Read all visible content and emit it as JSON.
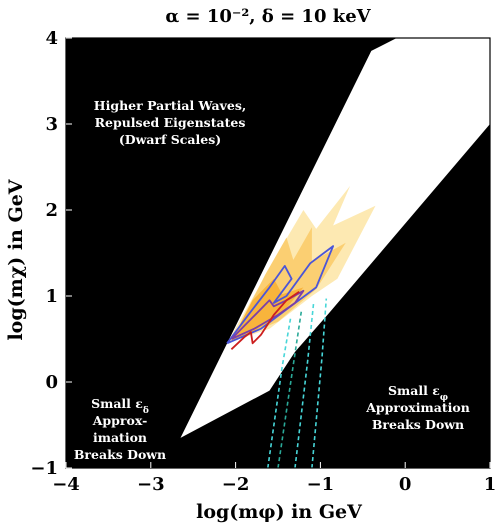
{
  "chart_data": {
    "type": "area",
    "title": "α = 10⁻², δ = 10 keV",
    "xlabel": "log(mφ) in GeV",
    "ylabel": "log(mχ) in GeV",
    "xlim": [
      -4,
      1
    ],
    "ylim": [
      -1,
      4
    ],
    "x_ticks": [
      "−4",
      "−3",
      "−2",
      "−1",
      "0",
      "1"
    ],
    "y_ticks": [
      "−1",
      "0",
      "1",
      "2",
      "3",
      "4"
    ],
    "colors": {
      "excluded_region": "#000000",
      "valid_region": "#ffffff",
      "band_light": "#fde9b2",
      "band_medium": "#fbcf72",
      "band_dark": "#f8b43c",
      "contour_blue": "#4b55d8",
      "contour_purple": "#7b3fa8",
      "contour_red": "#cc1f1f",
      "dashed_cyan": "#47d6d8",
      "dashed_teal": "#2aa998"
    },
    "regions": {
      "valid_region": [
        [
          -2.65,
          -0.65
        ],
        [
          -0.4,
          3.85
        ],
        [
          -0.1,
          4.0
        ],
        [
          1.0,
          4.0
        ],
        [
          1.0,
          3.0
        ],
        [
          -0.9,
          0.8
        ],
        [
          -1.3,
          0.35
        ],
        [
          -1.6,
          -0.1
        ]
      ],
      "band_light": [
        [
          -2.1,
          0.45
        ],
        [
          -1.5,
          1.5
        ],
        [
          -1.2,
          2.0
        ],
        [
          -1.05,
          1.78
        ],
        [
          -0.65,
          2.28
        ],
        [
          -0.85,
          1.82
        ],
        [
          -0.35,
          2.05
        ],
        [
          -0.8,
          1.2
        ],
        [
          -1.1,
          1.0
        ],
        [
          -1.6,
          0.62
        ]
      ],
      "band_medium": [
        [
          -2.05,
          0.48
        ],
        [
          -1.65,
          1.25
        ],
        [
          -1.4,
          1.68
        ],
        [
          -1.32,
          1.42
        ],
        [
          -1.1,
          1.8
        ],
        [
          -1.1,
          1.4
        ],
        [
          -0.7,
          1.62
        ],
        [
          -1.05,
          1.08
        ],
        [
          -1.5,
          0.7
        ]
      ],
      "band_dark": [
        [
          -2.05,
          0.48
        ],
        [
          -1.8,
          0.95
        ],
        [
          -1.55,
          1.2
        ],
        [
          -1.45,
          1.02
        ],
        [
          -1.2,
          1.1
        ],
        [
          -1.45,
          0.8
        ],
        [
          -1.8,
          0.58
        ]
      ]
    },
    "contours": {
      "blue": [
        [
          -2.1,
          0.45
        ],
        [
          -1.85,
          0.78
        ],
        [
          -1.6,
          1.1
        ],
        [
          -1.42,
          1.35
        ],
        [
          -1.34,
          1.2
        ],
        [
          -1.55,
          0.92
        ],
        [
          -1.4,
          1.0
        ],
        [
          -1.12,
          1.38
        ],
        [
          -0.85,
          1.58
        ],
        [
          -1.05,
          1.1
        ],
        [
          -1.35,
          0.88
        ],
        [
          -1.7,
          0.62
        ],
        [
          -2.1,
          0.45
        ]
      ],
      "purple": [
        [
          -2.05,
          0.5
        ],
        [
          -1.75,
          0.8
        ],
        [
          -1.6,
          0.95
        ],
        [
          -1.55,
          0.88
        ],
        [
          -1.4,
          0.95
        ],
        [
          -1.2,
          1.06
        ],
        [
          -1.3,
          0.92
        ],
        [
          -1.5,
          0.78
        ],
        [
          -1.78,
          0.62
        ],
        [
          -2.05,
          0.5
        ]
      ],
      "red": [
        [
          -2.05,
          0.38
        ],
        [
          -1.9,
          0.52
        ],
        [
          -1.82,
          0.58
        ],
        [
          -1.8,
          0.45
        ],
        [
          -1.7,
          0.55
        ],
        [
          -1.55,
          0.78
        ],
        [
          -1.4,
          0.95
        ],
        [
          -1.25,
          1.05
        ]
      ],
      "dashed": [
        {
          "color": "cyan",
          "points": [
            [
              -1.62,
              -1.0
            ],
            [
              -1.45,
              0.18
            ],
            [
              -1.35,
              0.75
            ]
          ]
        },
        {
          "color": "teal",
          "points": [
            [
              -1.5,
              -1.0
            ],
            [
              -1.32,
              0.2
            ],
            [
              -1.22,
              0.85
            ]
          ]
        },
        {
          "color": "cyan",
          "points": [
            [
              -1.3,
              -1.0
            ],
            [
              -1.15,
              0.25
            ],
            [
              -1.08,
              0.92
            ]
          ]
        },
        {
          "color": "cyan",
          "points": [
            [
              -1.1,
              -1.0
            ],
            [
              -0.98,
              0.3
            ],
            [
              -0.93,
              0.97
            ]
          ]
        }
      ]
    },
    "annotations": {
      "upper_region": [
        "Higher Partial Waves,",
        "Repulsed Eigenstates",
        "(Dwarf Scales)"
      ],
      "lower_left": [
        "Small  ε",
        "Approx-",
        "imation",
        "Breaks Down"
      ],
      "lower_left_sub": "δ",
      "lower_right": [
        "Small ε",
        "Approximation",
        "Breaks Down"
      ],
      "lower_right_sub": "φ"
    }
  }
}
